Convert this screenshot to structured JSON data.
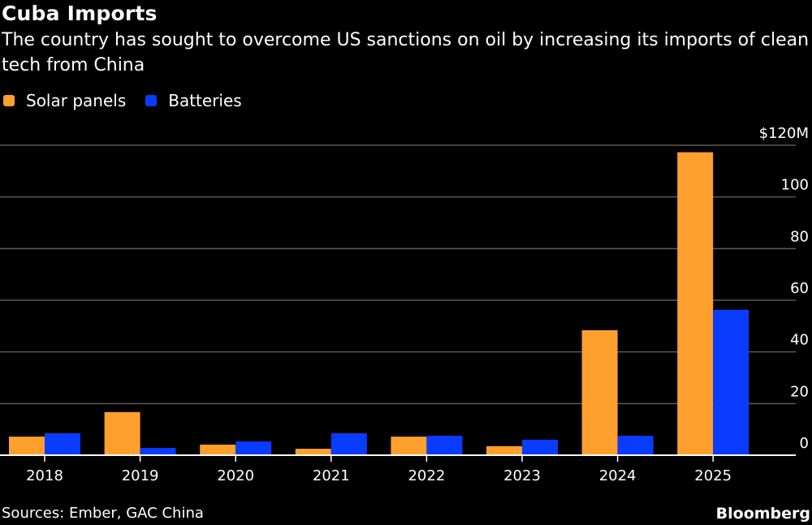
{
  "header": {
    "title": "Cuba Imports",
    "subtitle": "The country has sought to overcome US sanctions on oil by increasing its imports of clean tech from China"
  },
  "legend": [
    {
      "label": "Solar panels",
      "color": "#FF9F2E"
    },
    {
      "label": "Batteries",
      "color": "#0A3CFF"
    }
  ],
  "footer": {
    "source": "Sources: Ember, GAC China",
    "brand": "Bloomberg"
  },
  "chart_data": {
    "type": "bar",
    "title": "Cuba Imports",
    "subtitle": "The country has sought to overcome US sanctions on oil by increasing its imports of clean tech from China",
    "xlabel": "",
    "ylabel": "",
    "categories": [
      "2018",
      "2019",
      "2020",
      "2021",
      "2022",
      "2023",
      "2024",
      "2025"
    ],
    "series": [
      {
        "name": "Solar panels",
        "color": "#FF9F2E",
        "values": [
          7.2,
          16.7,
          4.1,
          2.5,
          7.2,
          3.5,
          48.4,
          117.3
        ]
      },
      {
        "name": "Batteries",
        "color": "#0A3CFF",
        "values": [
          8.5,
          2.8,
          5.3,
          8.5,
          7.5,
          6.0,
          7.5,
          56.3
        ]
      }
    ],
    "ylim": [
      0,
      120
    ],
    "yticks": [
      0,
      20,
      40,
      60,
      80,
      100,
      120
    ],
    "ytick_labels": [
      "0",
      "20",
      "40",
      "60",
      "80",
      "100",
      "$120M"
    ],
    "y_axis_side": "right",
    "grid": true,
    "legend_position": "top-left",
    "units": "USD millions"
  }
}
